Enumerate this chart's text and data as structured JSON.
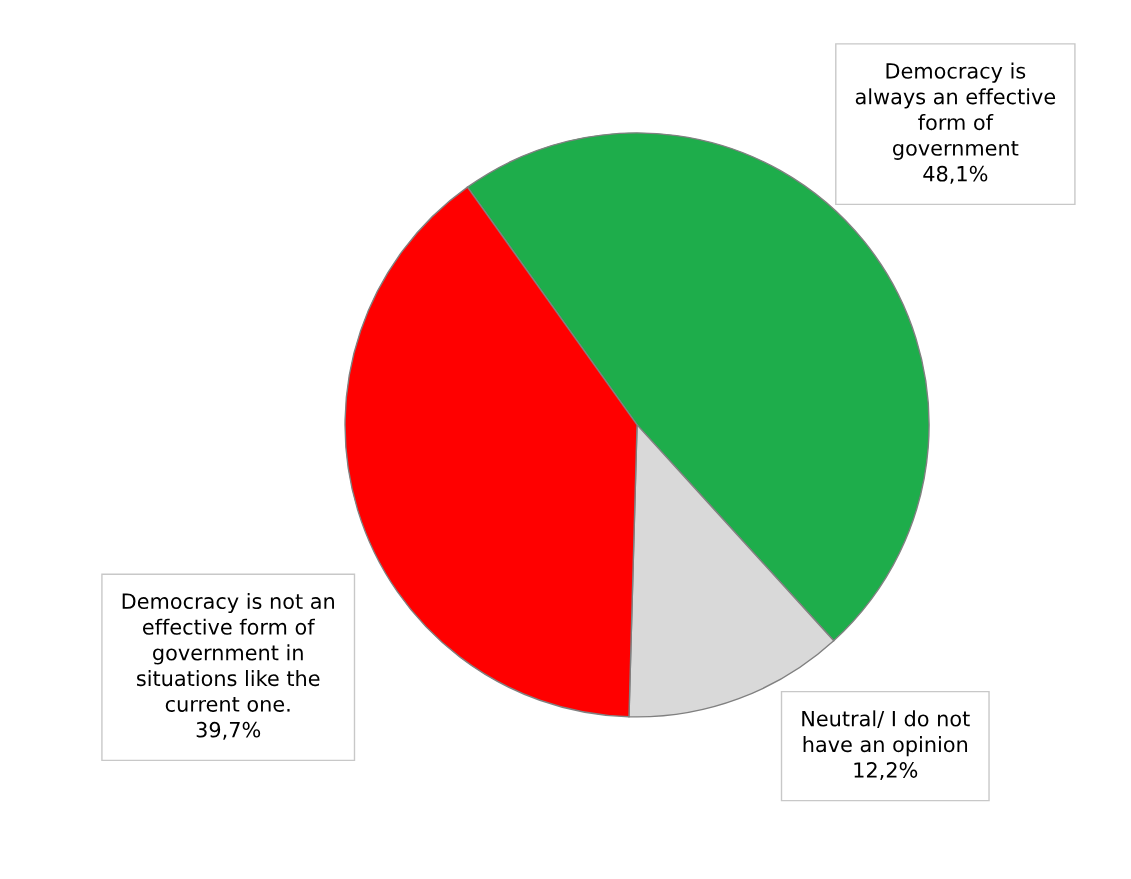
{
  "chart_data": {
    "type": "pie",
    "categories": [
      "Democracy is\nalways an effective\nform of\ngovernment",
      "Neutral/ I do not\nhave an opinion",
      "Democracy is not an\neffective form of\ngovernment in\nsituations like the\ncurrent one."
    ],
    "values": [
      48.1,
      12.2,
      39.7
    ],
    "value_labels": [
      "48,1%",
      "12,2%",
      "39,7%"
    ],
    "colors": [
      "#1ead4b",
      "#d9d9d9",
      "#ff0000"
    ],
    "legend": false
  }
}
